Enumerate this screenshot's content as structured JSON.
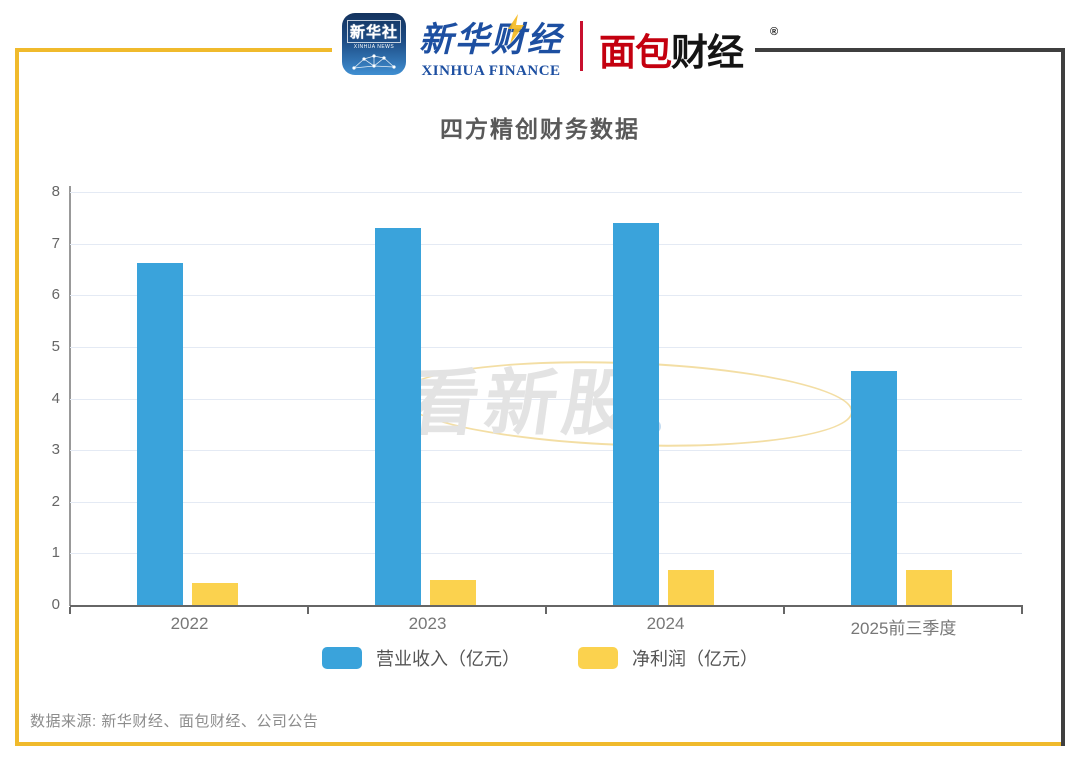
{
  "header": {
    "xinhua_app": {
      "line1": "新华社",
      "line2": "XINHUA NEWS"
    },
    "xinhua_finance": {
      "cn": "新华财经",
      "en": "XINHUA FINANCE"
    },
    "mianbao": {
      "red": "面包",
      "black": "财经",
      "reg": "®"
    }
  },
  "title": "四方精创财务数据",
  "watermark": "看新股",
  "footer": {
    "source": "数据来源: 新华财经、面包财经、公司公告"
  },
  "colors": {
    "revenue_blue": "#3AA3DB",
    "profit_yellow": "#FBD24E",
    "frame_yellow": "#F0BA2C",
    "frame_dark": "#3F3F3F",
    "grid": "#E4EAF4",
    "xinhua_blue": "#1D4FA1",
    "mianbao_red": "#C4000F"
  },
  "chart_data": {
    "type": "bar",
    "title": "四方精创财务数据",
    "categories": [
      "2022",
      "2023",
      "2024",
      "2025前三季度"
    ],
    "series": [
      {
        "name": "营业收入（亿元）",
        "color": "#3AA3DB",
        "values": [
          6.63,
          7.3,
          7.4,
          4.53
        ]
      },
      {
        "name": "净利润（亿元）",
        "color": "#FBD24E",
        "values": [
          0.42,
          0.48,
          0.67,
          0.67
        ]
      }
    ],
    "xlabel": "",
    "ylabel": "",
    "ylim": [
      0,
      8
    ],
    "yticks": [
      0,
      1,
      2,
      3,
      4,
      5,
      6,
      7,
      8
    ],
    "grid": true,
    "legend_position": "bottom"
  }
}
